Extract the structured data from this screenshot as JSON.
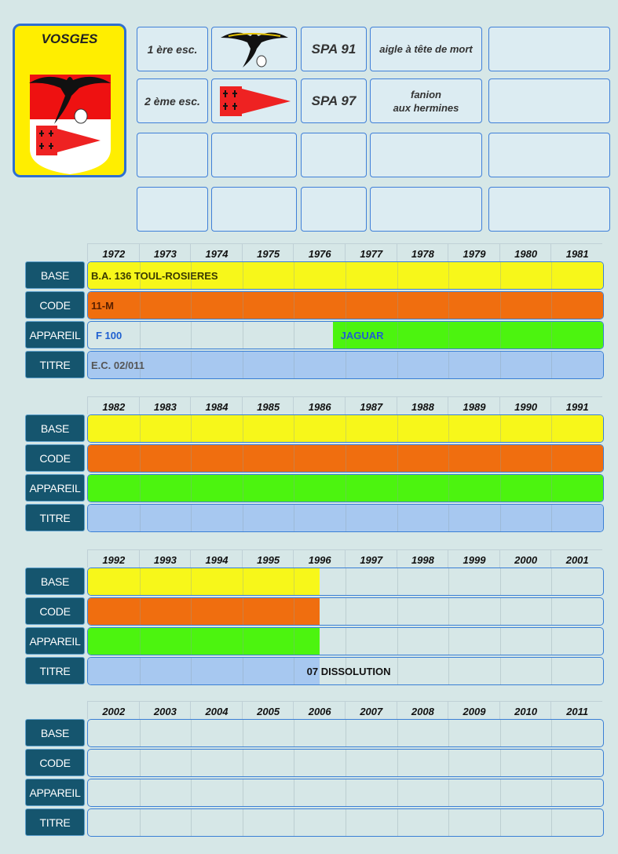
{
  "colors": {
    "base": "#f7f71a",
    "code": "#f06e0f",
    "appareil": "#4cf40f",
    "titre": "#a7c8f0"
  },
  "badge": {
    "title": "VOSGES"
  },
  "escadrilles": [
    {
      "esc": "1 ère esc.",
      "spa": "SPA 91",
      "name": "aigle à tête de mort",
      "icon": "eagle-skull-icon"
    },
    {
      "esc": "2 ème esc.",
      "spa": "SPA 97",
      "name": "fanion\naux hermines",
      "icon": "ermine-pennant-icon"
    }
  ],
  "row_labels": {
    "base": "BASE",
    "code": "CODE",
    "appareil": "APPAREIL",
    "titre": "TITRE"
  },
  "decades": [
    {
      "years": [
        "1972",
        "1973",
        "1974",
        "1975",
        "1976",
        "1977",
        "1978",
        "1979",
        "1980",
        "1981"
      ],
      "rows": {
        "base": [
          {
            "from": 0,
            "to": 10,
            "text": "B.A. 136 TOUL-ROSIERES"
          }
        ],
        "code": [
          {
            "from": 0,
            "to": 10,
            "text": "11-M"
          }
        ],
        "appareil": [
          {
            "from": 0,
            "to": 4.75,
            "text": "F 100",
            "fill": false
          },
          {
            "from": 4.75,
            "to": 10,
            "text": "JAGUAR"
          }
        ],
        "titre": [
          {
            "from": 0,
            "to": 10,
            "text": "E.C. 02/011"
          }
        ]
      }
    },
    {
      "years": [
        "1982",
        "1983",
        "1984",
        "1985",
        "1986",
        "1987",
        "1988",
        "1989",
        "1990",
        "1991"
      ],
      "rows": {
        "base": [
          {
            "from": 0,
            "to": 10,
            "text": ""
          }
        ],
        "code": [
          {
            "from": 0,
            "to": 10,
            "text": ""
          }
        ],
        "appareil": [
          {
            "from": 0,
            "to": 10,
            "text": ""
          }
        ],
        "titre": [
          {
            "from": 0,
            "to": 10,
            "text": ""
          }
        ]
      }
    },
    {
      "years": [
        "1992",
        "1993",
        "1994",
        "1995",
        "1996",
        "1997",
        "1998",
        "1999",
        "2000",
        "2001"
      ],
      "rows": {
        "base": [
          {
            "from": 0,
            "to": 4.5,
            "text": ""
          }
        ],
        "code": [
          {
            "from": 0,
            "to": 4.5,
            "text": ""
          }
        ],
        "appareil": [
          {
            "from": 0,
            "to": 4.5,
            "text": ""
          }
        ],
        "titre": [
          {
            "from": 0,
            "to": 4.5,
            "text": ""
          }
        ]
      },
      "note": "07  DISSOLUTION"
    },
    {
      "years": [
        "2002",
        "2003",
        "2004",
        "2005",
        "2006",
        "2007",
        "2008",
        "2009",
        "2010",
        "2011"
      ],
      "rows": {
        "base": [],
        "code": [],
        "appareil": [],
        "titre": []
      }
    }
  ]
}
